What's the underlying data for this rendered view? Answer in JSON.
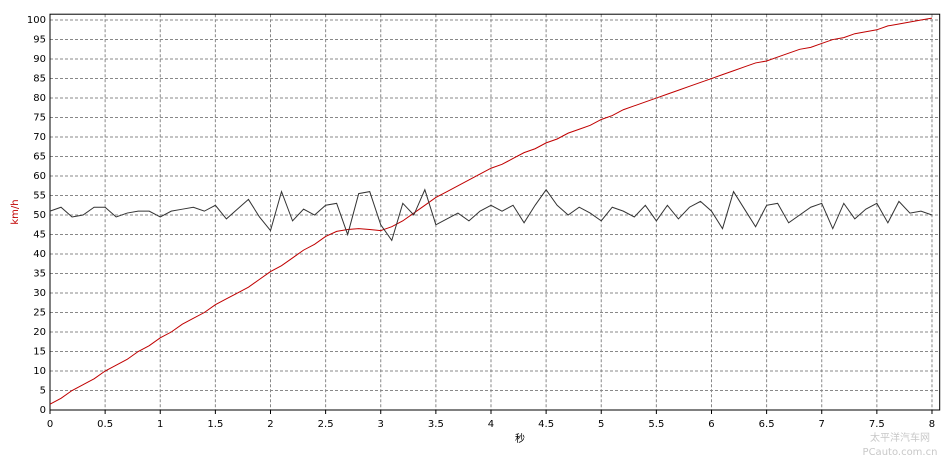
{
  "chart_data": {
    "type": "line",
    "xlabel": "秒",
    "ylabel": "km/h",
    "ylabel_color": "#c00000",
    "watermark": "太平洋汽车网",
    "watermark_url": "PCauto.com.cn",
    "x": [
      0,
      0.1,
      0.2,
      0.3,
      0.4,
      0.5,
      0.6,
      0.7,
      0.8,
      0.9,
      1,
      1.1,
      1.2,
      1.3,
      1.4,
      1.5,
      1.6,
      1.7,
      1.8,
      1.9,
      2,
      2.1,
      2.2,
      2.3,
      2.4,
      2.5,
      2.6,
      2.7,
      2.8,
      2.9,
      3,
      3.1,
      3.2,
      3.3,
      3.4,
      3.5,
      3.6,
      3.7,
      3.8,
      3.9,
      4,
      4.1,
      4.2,
      4.3,
      4.4,
      4.5,
      4.6,
      4.7,
      4.8,
      4.9,
      5,
      5.1,
      5.2,
      5.3,
      5.4,
      5.5,
      5.6,
      5.7,
      5.8,
      5.9,
      6,
      6.1,
      6.2,
      6.3,
      6.4,
      6.5,
      6.6,
      6.7,
      6.8,
      6.9,
      7,
      7.1,
      7.2,
      7.3,
      7.4,
      7.5,
      7.6,
      7.7,
      7.8,
      7.9,
      8
    ],
    "series": [
      {
        "color": "#c00000",
        "values": [
          1.5,
          3,
          5,
          6.5,
          8,
          10,
          11.5,
          13,
          15,
          16.5,
          18.5,
          20,
          22,
          23.5,
          25,
          27,
          28.5,
          30,
          31.5,
          33.5,
          35.5,
          37,
          39,
          41,
          42.5,
          44.5,
          45.8,
          46.3,
          46.5,
          46.3,
          46,
          47,
          48.5,
          50.5,
          52.5,
          54.5,
          56,
          57.5,
          59,
          60.5,
          62,
          63,
          64.5,
          66,
          67,
          68.5,
          69.5,
          71,
          72,
          73,
          74.5,
          75.5,
          77,
          78,
          79,
          80,
          81,
          82,
          83,
          84,
          85,
          86,
          87,
          88,
          89,
          89.5,
          90.5,
          91.5,
          92.5,
          93,
          94,
          95,
          95.5,
          96.5,
          97,
          97.5,
          98.5,
          99,
          99.5,
          100,
          100.5
        ]
      },
      {
        "color": "#333333",
        "values": [
          51,
          52,
          49.5,
          50,
          52,
          52,
          49.5,
          50.5,
          51,
          51,
          49.5,
          51,
          51.5,
          52,
          51,
          52.5,
          49,
          51.5,
          54,
          49.5,
          46,
          56,
          48.5,
          51.5,
          50,
          52.5,
          53,
          45,
          55.5,
          56,
          47.5,
          43.5,
          53,
          50,
          56.5,
          47.5,
          49,
          50.5,
          48.5,
          51,
          52.5,
          51,
          52.5,
          48,
          52.5,
          56.5,
          52.5,
          50,
          52,
          50.5,
          48.5,
          52,
          51,
          49.5,
          52.5,
          48.5,
          52.5,
          49,
          52,
          53.5,
          51,
          46.5,
          56,
          51.5,
          47,
          52.5,
          53,
          48,
          50,
          52,
          53,
          46.5,
          53,
          49,
          51.5,
          53,
          48,
          53.5,
          50.5,
          51,
          50
        ]
      }
    ],
    "xlim": [
      0,
      8.07
    ],
    "ylim": [
      0,
      101.5
    ],
    "xticks": [
      0,
      0.5,
      1,
      1.5,
      2,
      2.5,
      3,
      3.5,
      4,
      4.5,
      5,
      5.5,
      6,
      6.5,
      7,
      7.5,
      8
    ],
    "yticks": [
      0,
      5,
      10,
      15,
      20,
      25,
      30,
      35,
      40,
      45,
      50,
      55,
      60,
      65,
      70,
      75,
      80,
      85,
      90,
      95,
      100
    ],
    "grid": true
  }
}
